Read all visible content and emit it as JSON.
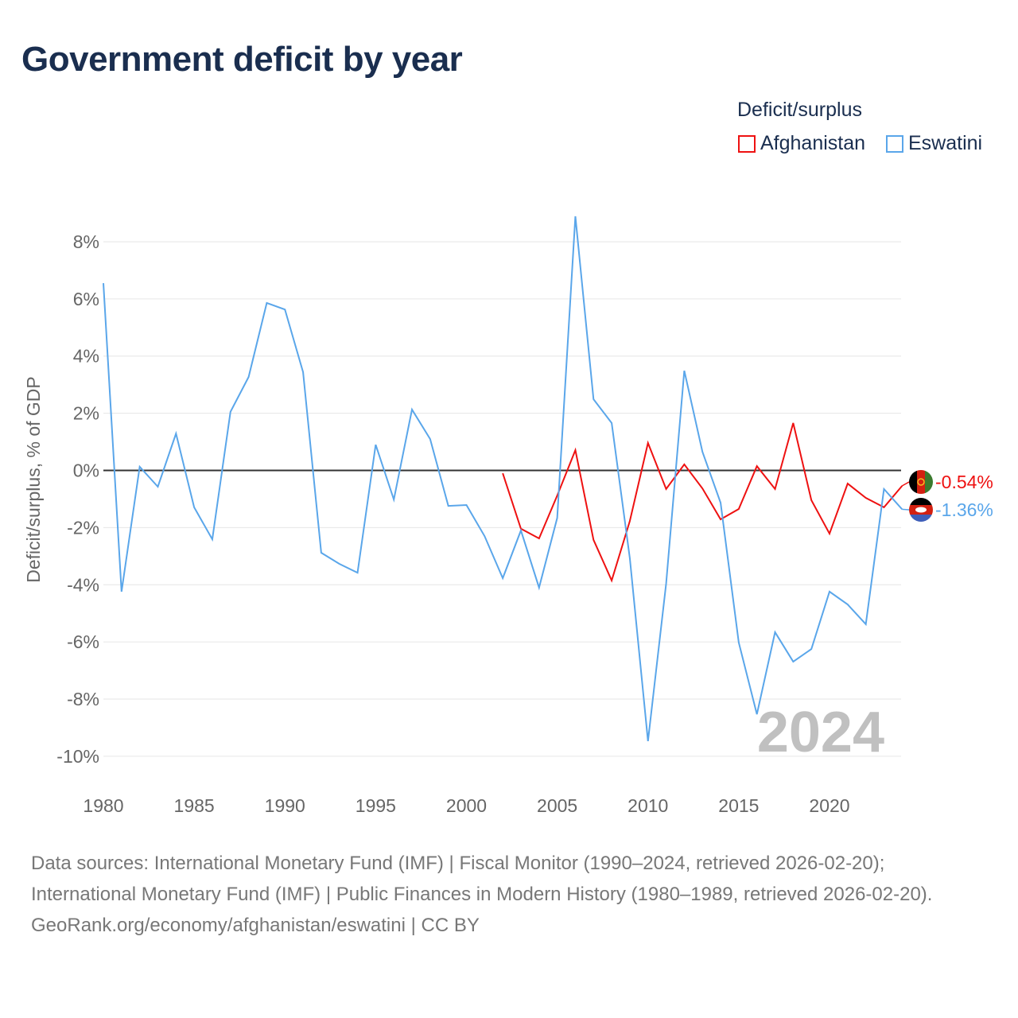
{
  "title": "Government deficit by year",
  "legend": {
    "title": "Deficit/surplus",
    "items": [
      {
        "name": "Afghanistan",
        "color": "#ee1111"
      },
      {
        "name": "Eswatini",
        "color": "#5aa6ea"
      }
    ]
  },
  "watermark_year": "2024",
  "sources": {
    "line1": "Data sources: International Monetary Fund (IMF) | Fiscal Monitor (1990–2024, retrieved 2026-02-20); International Monetary Fund (IMF) | Public Finances in Modern History (1980–1989, retrieved 2026-02-20).",
    "line2": "GeoRank.org/economy/afghanistan/eswatini | CC BY"
  },
  "chart_data": {
    "type": "line",
    "title": "Government deficit by year",
    "xlabel": "",
    "ylabel": "Deficit/surplus, % of GDP",
    "xlim": [
      1980,
      2024
    ],
    "ylim": [
      -10,
      8
    ],
    "xticks": [
      1980,
      1985,
      1990,
      1995,
      2000,
      2005,
      2010,
      2015,
      2020
    ],
    "yticks": [
      8,
      6,
      4,
      2,
      0,
      -2,
      -4,
      -6,
      -8,
      -10
    ],
    "ytick_labels": [
      "8%",
      "6%",
      "4%",
      "2%",
      "0%",
      "-2%",
      "-4%",
      "-6%",
      "-8%",
      "-10%"
    ],
    "grid": true,
    "legend_position": "top-right",
    "series": [
      {
        "name": "Afghanistan",
        "color": "#ee1111",
        "end_label": "-0.54%",
        "x": [
          2002,
          2003,
          2004,
          2005,
          2006,
          2007,
          2008,
          2009,
          2010,
          2011,
          2012,
          2013,
          2014,
          2015,
          2016,
          2017,
          2018,
          2019,
          2020,
          2021,
          2022,
          2023,
          2024
        ],
        "values": [
          -0.1,
          -2.04,
          -2.38,
          -0.88,
          0.71,
          -2.43,
          -3.85,
          -1.77,
          0.96,
          -0.65,
          0.21,
          -0.63,
          -1.71,
          -1.35,
          0.15,
          -0.65,
          1.66,
          -1.04,
          -2.21,
          -0.46,
          -0.96,
          -1.29,
          -0.54
        ]
      },
      {
        "name": "Eswatini",
        "color": "#5aa6ea",
        "end_label": "-1.36%",
        "x": [
          1980,
          1981,
          1982,
          1983,
          1984,
          1985,
          1986,
          1987,
          1988,
          1989,
          1990,
          1991,
          1992,
          1993,
          1994,
          1995,
          1996,
          1997,
          1998,
          1999,
          2000,
          2001,
          2002,
          2003,
          2004,
          2005,
          2006,
          2007,
          2008,
          2009,
          2010,
          2011,
          2012,
          2013,
          2014,
          2015,
          2016,
          2017,
          2018,
          2019,
          2020,
          2021,
          2022,
          2023,
          2024
        ],
        "values": [
          6.55,
          -4.24,
          0.13,
          -0.57,
          1.29,
          -1.29,
          -2.41,
          2.05,
          3.27,
          5.86,
          5.63,
          3.44,
          -2.88,
          -3.27,
          -3.58,
          0.9,
          -1.02,
          2.13,
          1.1,
          -1.24,
          -1.21,
          -2.3,
          -3.77,
          -2.1,
          -4.1,
          -1.66,
          8.89,
          2.49,
          1.66,
          -3.07,
          -9.47,
          -3.96,
          3.49,
          0.65,
          -1.13,
          -6.02,
          -8.53,
          -5.66,
          -6.69,
          -6.25,
          -4.24,
          -4.69,
          -5.38,
          -0.65,
          -1.36
        ]
      }
    ]
  }
}
